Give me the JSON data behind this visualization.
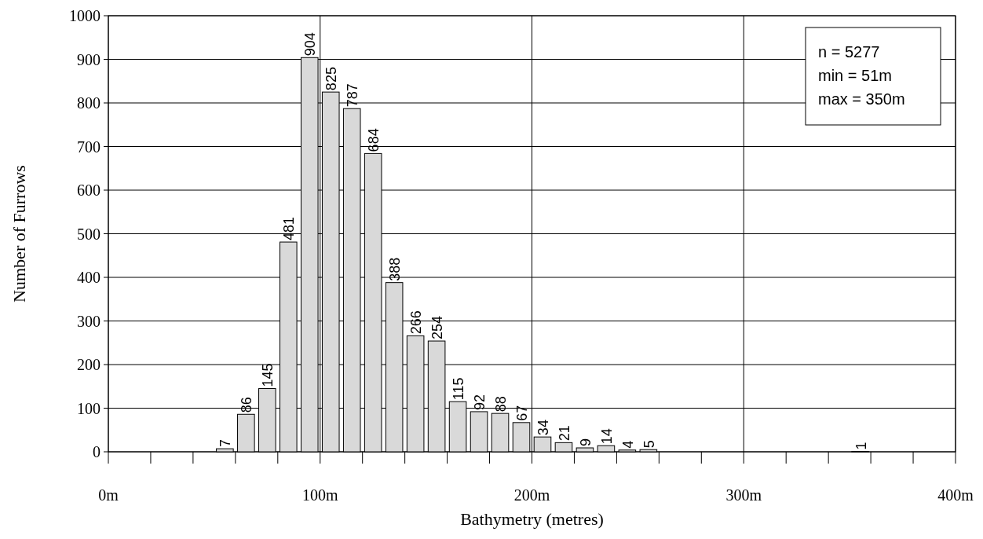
{
  "chart_data": {
    "type": "histogram",
    "xlabel": "Bathymetry (metres)",
    "ylabel": "Number of Furrows",
    "bins": [
      0,
      10,
      20,
      30,
      40,
      50,
      60,
      70,
      80,
      90,
      100,
      110,
      120,
      130,
      140,
      150,
      160,
      170,
      180,
      190,
      200,
      210,
      220,
      230,
      240,
      250,
      260,
      270,
      280,
      290,
      300,
      310,
      320,
      330,
      340,
      350,
      360,
      370,
      380,
      390,
      400
    ],
    "values": [
      0,
      0,
      0,
      0,
      0,
      7,
      86,
      145,
      481,
      904,
      825,
      787,
      684,
      388,
      266,
      254,
      115,
      92,
      88,
      67,
      34,
      21,
      9,
      14,
      4,
      5,
      0,
      0,
      0,
      0,
      0,
      0,
      0,
      0,
      0,
      1,
      0,
      0,
      0,
      0
    ],
    "value_labels": [
      null,
      null,
      null,
      null,
      null,
      "7",
      "86",
      "145",
      "481",
      "904",
      "825",
      "787",
      "684",
      "388",
      "266",
      "254",
      "115",
      "92",
      "88",
      "67",
      "34",
      "21",
      "9",
      "14",
      "4",
      "5",
      null,
      null,
      null,
      null,
      null,
      null,
      null,
      null,
      null,
      "1",
      null,
      null,
      null,
      null
    ],
    "color": "#d9d9d9",
    "xlim": [
      0,
      400
    ],
    "xticks": [
      {
        "value": 0,
        "label": "0m"
      },
      {
        "value": 20,
        "label": null
      },
      {
        "value": 40,
        "label": null
      },
      {
        "value": 60,
        "label": null
      },
      {
        "value": 80,
        "label": null
      },
      {
        "value": 100,
        "label": "100m"
      },
      {
        "value": 120,
        "label": null
      },
      {
        "value": 140,
        "label": null
      },
      {
        "value": 160,
        "label": null
      },
      {
        "value": 180,
        "label": null
      },
      {
        "value": 200,
        "label": "200m"
      },
      {
        "value": 220,
        "label": null
      },
      {
        "value": 240,
        "label": null
      },
      {
        "value": 260,
        "label": null
      },
      {
        "value": 280,
        "label": null
      },
      {
        "value": 300,
        "label": "300m"
      },
      {
        "value": 320,
        "label": null
      },
      {
        "value": 340,
        "label": null
      },
      {
        "value": 360,
        "label": null
      },
      {
        "value": 380,
        "label": null
      },
      {
        "value": 400,
        "label": "400m"
      }
    ],
    "ylim": [
      0,
      1000
    ],
    "yticks": [
      0,
      100,
      200,
      300,
      400,
      500,
      600,
      700,
      800,
      900,
      1000
    ],
    "grid": true,
    "annotations": [
      "n = 5277",
      "min = 51m",
      "max = 350m"
    ]
  }
}
